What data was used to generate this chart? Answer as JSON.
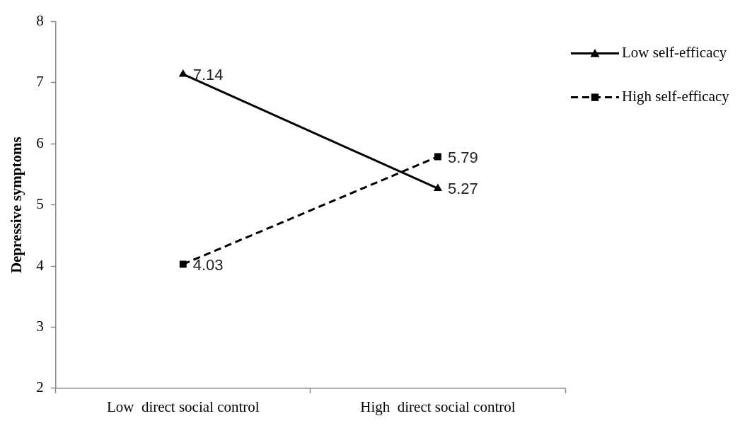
{
  "chart_data": {
    "type": "line",
    "ylabel": "Depressive symptoms",
    "categories": [
      "Low  direct social control",
      "High  direct social control"
    ],
    "series": [
      {
        "name": "Low self-efficacy",
        "color": "#000000",
        "values": [
          7.14,
          5.27
        ],
        "marker": "triangle",
        "line_style": "solid"
      },
      {
        "name": "High self-efficacy",
        "color": "#000000",
        "values": [
          4.03,
          5.79
        ],
        "marker": "square",
        "line_style": "dashed"
      }
    ],
    "ylim": [
      2,
      8
    ],
    "yticks": [
      2,
      3,
      4,
      5,
      6,
      7,
      8
    ],
    "grid": false,
    "legend": "top right",
    "data_labels": true
  }
}
